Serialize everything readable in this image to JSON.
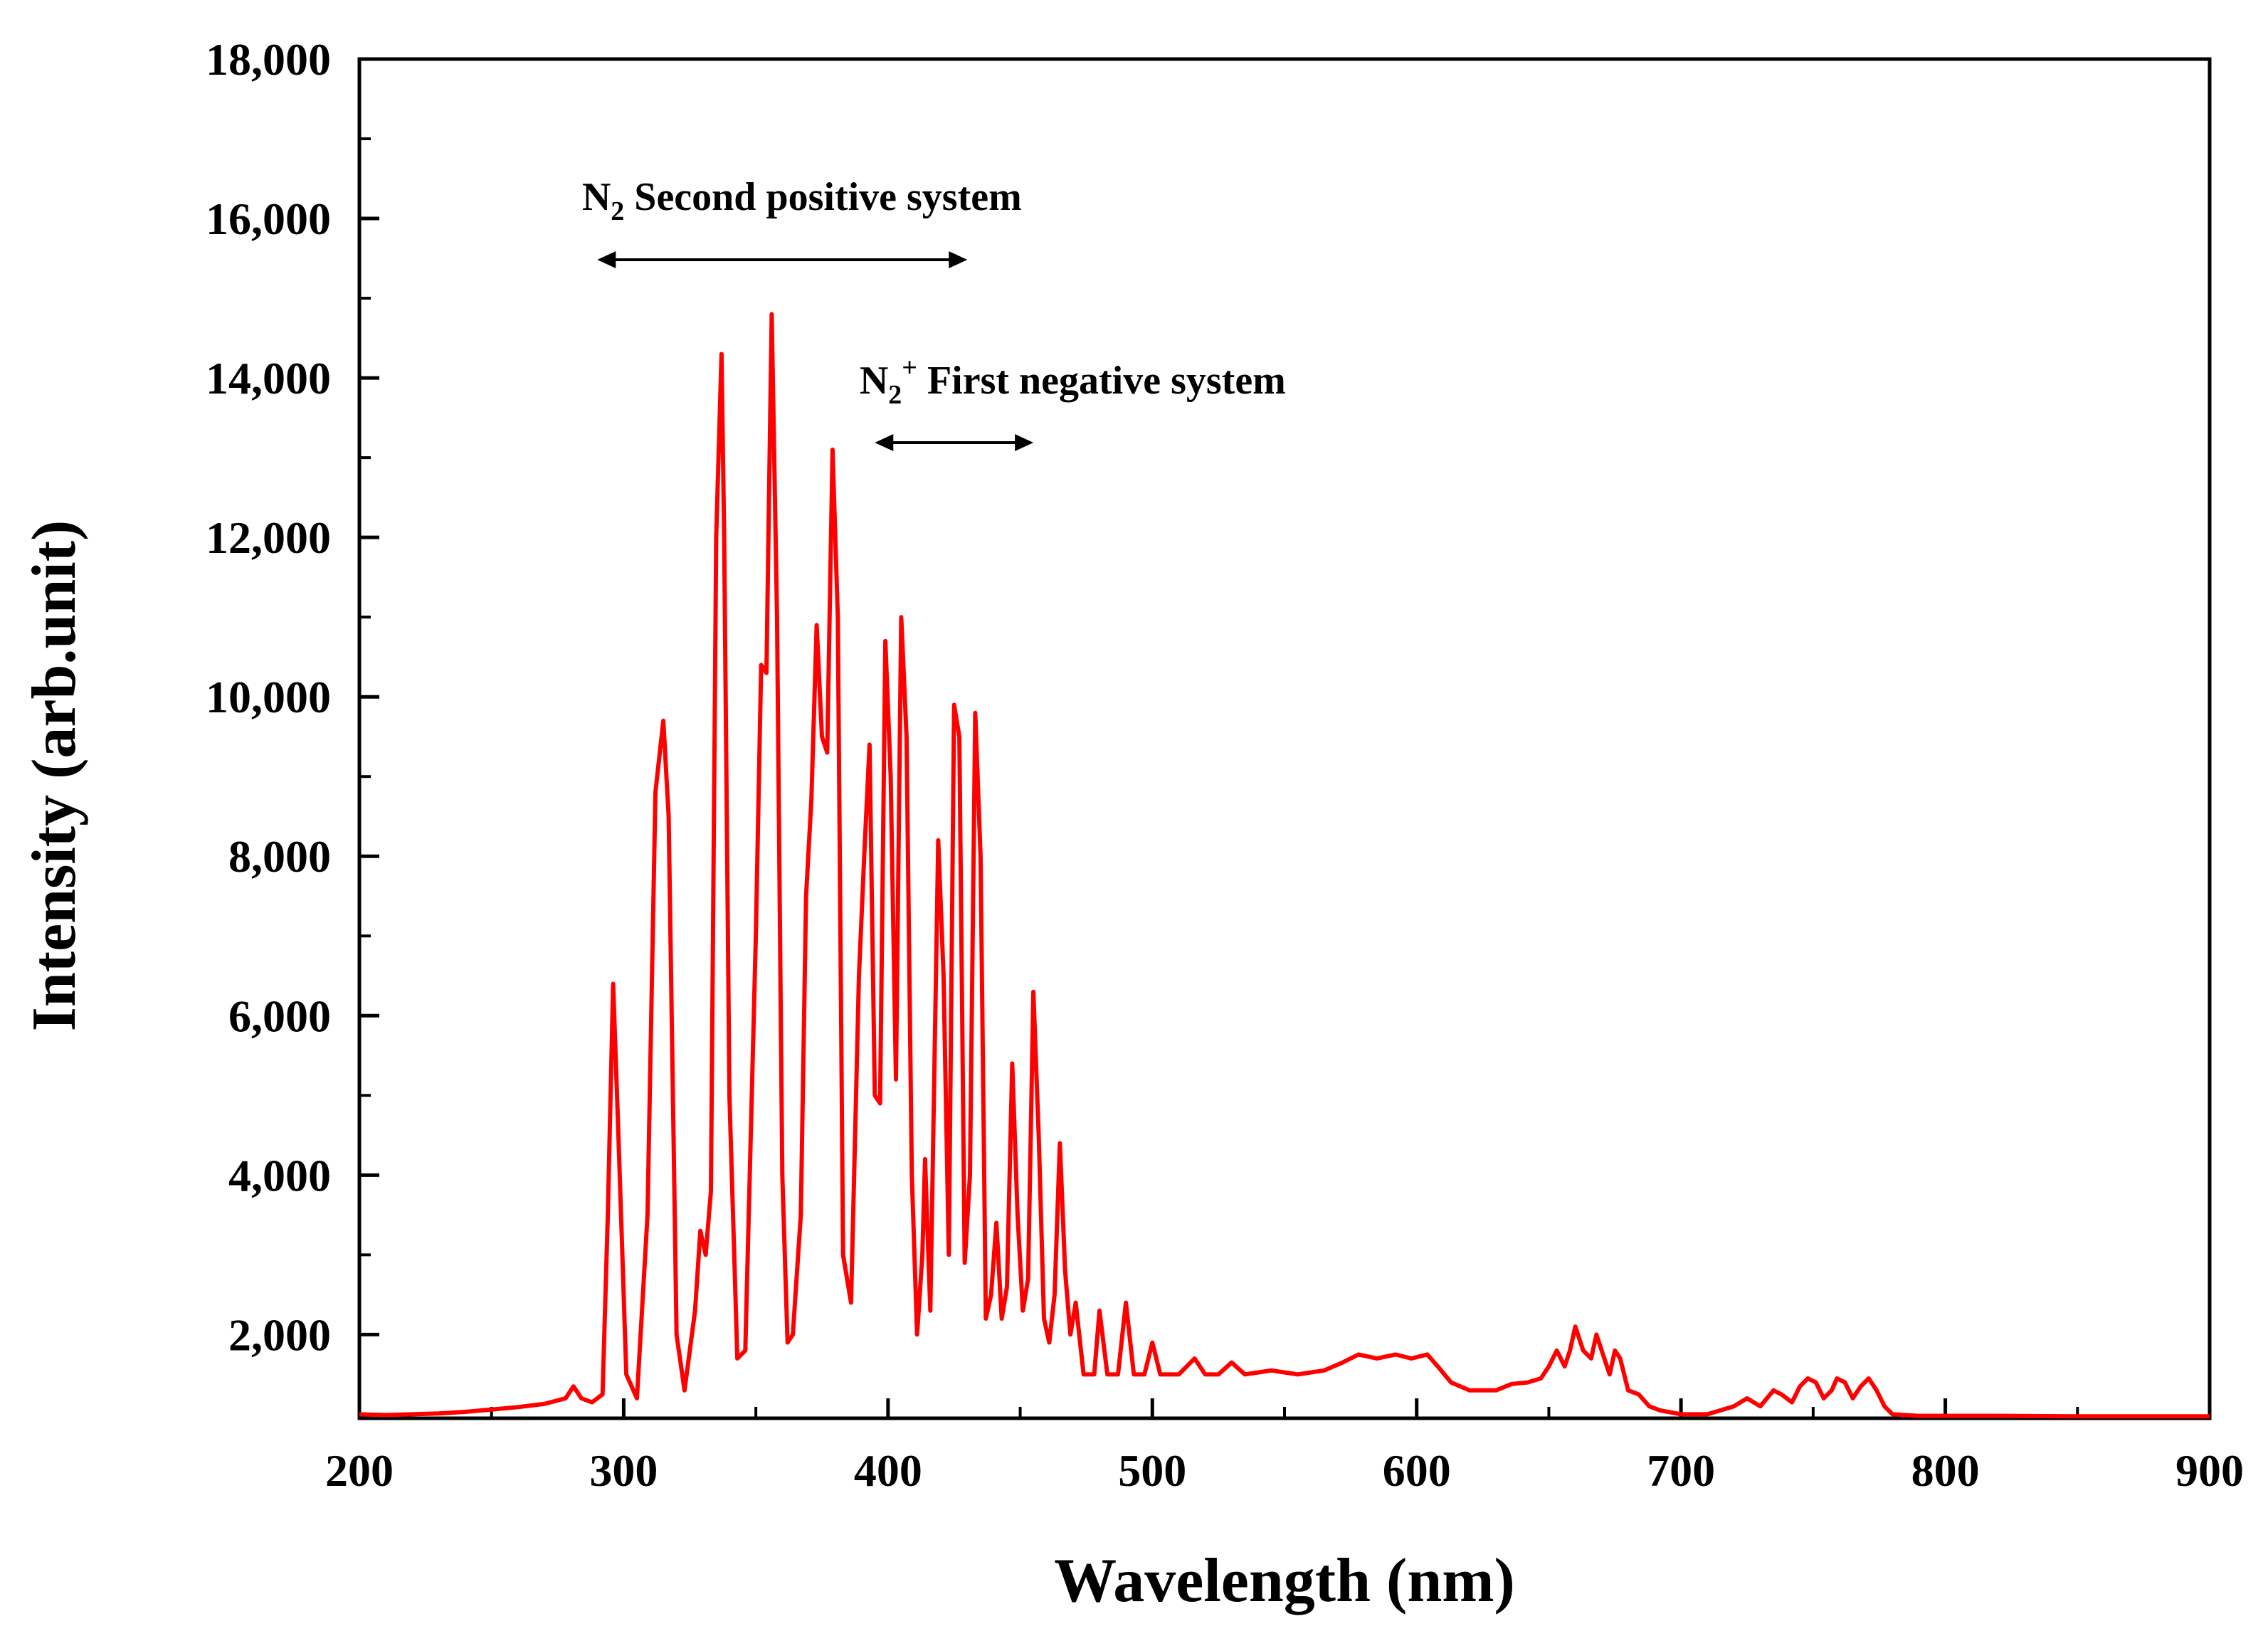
{
  "chart_data": {
    "type": "line",
    "xlabel": "Wavelength (nm)",
    "ylabel": "Intensity (arb.unit)",
    "xlim": [
      200,
      900
    ],
    "ylim": [
      950,
      18000
    ],
    "x_ticks": [
      200,
      300,
      400,
      500,
      600,
      700,
      800,
      900
    ],
    "x_tick_labels": [
      "200",
      "300",
      "400",
      "500",
      "600",
      "700",
      "800",
      "900"
    ],
    "y_ticks": [
      2000,
      4000,
      6000,
      8000,
      10000,
      12000,
      14000,
      16000,
      18000
    ],
    "y_tick_labels": [
      "2,000",
      "4,000",
      "6,000",
      "8,000",
      "10,000",
      "12,000",
      "14,000",
      "16,000",
      "18,000"
    ],
    "grid": false,
    "line_color": "#ff0000",
    "annotations": [
      {
        "base": "N",
        "sub": "2",
        "sup": "",
        "rest": " Second positive system",
        "x_start": 290,
        "x_end": 430,
        "anchor_x": 295
      },
      {
        "base": "N",
        "sub": "2",
        "sup": "+",
        "rest": " First negative system",
        "x_start": 395,
        "x_end": 455,
        "anchor_x": 400
      }
    ],
    "series": [
      {
        "values": [
          [
            200,
            1000
          ],
          [
            210,
            990
          ],
          [
            220,
            1000
          ],
          [
            230,
            1010
          ],
          [
            240,
            1030
          ],
          [
            250,
            1060
          ],
          [
            260,
            1090
          ],
          [
            270,
            1130
          ],
          [
            278,
            1200
          ],
          [
            281,
            1350
          ],
          [
            284,
            1200
          ],
          [
            288,
            1150
          ],
          [
            292,
            1250
          ],
          [
            294,
            3500
          ],
          [
            296,
            6400
          ],
          [
            298,
            4500
          ],
          [
            301,
            1500
          ],
          [
            305,
            1200
          ],
          [
            309,
            3500
          ],
          [
            312,
            8800
          ],
          [
            315,
            9700
          ],
          [
            317,
            8500
          ],
          [
            320,
            2000
          ],
          [
            323,
            1300
          ],
          [
            327,
            2300
          ],
          [
            329,
            3300
          ],
          [
            331,
            3000
          ],
          [
            333,
            3800
          ],
          [
            335,
            12000
          ],
          [
            337,
            14300
          ],
          [
            338,
            12000
          ],
          [
            340,
            5000
          ],
          [
            343,
            1700
          ],
          [
            346,
            1800
          ],
          [
            350,
            7000
          ],
          [
            352,
            10400
          ],
          [
            354,
            10300
          ],
          [
            356,
            14800
          ],
          [
            358,
            11000
          ],
          [
            360,
            4000
          ],
          [
            362,
            1900
          ],
          [
            364,
            2000
          ],
          [
            367,
            3500
          ],
          [
            369,
            7500
          ],
          [
            371,
            8700
          ],
          [
            373,
            10900
          ],
          [
            375,
            9500
          ],
          [
            377,
            9300
          ],
          [
            379,
            13100
          ],
          [
            381,
            11000
          ],
          [
            383,
            3000
          ],
          [
            386,
            2400
          ],
          [
            389,
            6500
          ],
          [
            391,
            8000
          ],
          [
            393,
            9400
          ],
          [
            395,
            5000
          ],
          [
            397,
            4900
          ],
          [
            399,
            10700
          ],
          [
            401,
            9000
          ],
          [
            403,
            5200
          ],
          [
            405,
            11000
          ],
          [
            407,
            9500
          ],
          [
            409,
            4000
          ],
          [
            411,
            2000
          ],
          [
            413,
            3000
          ],
          [
            414,
            4200
          ],
          [
            416,
            2300
          ],
          [
            419,
            8200
          ],
          [
            421,
            6500
          ],
          [
            423,
            3000
          ],
          [
            425,
            9900
          ],
          [
            427,
            9500
          ],
          [
            429,
            2900
          ],
          [
            431,
            4000
          ],
          [
            433,
            9800
          ],
          [
            435,
            8000
          ],
          [
            437,
            2200
          ],
          [
            439,
            2500
          ],
          [
            441,
            3400
          ],
          [
            443,
            2200
          ],
          [
            445,
            2600
          ],
          [
            447,
            5400
          ],
          [
            449,
            3500
          ],
          [
            451,
            2300
          ],
          [
            453,
            2700
          ],
          [
            455,
            6300
          ],
          [
            457,
            4500
          ],
          [
            459,
            2200
          ],
          [
            461,
            1900
          ],
          [
            463,
            2500
          ],
          [
            465,
            4400
          ],
          [
            467,
            2800
          ],
          [
            469,
            2000
          ],
          [
            471,
            2400
          ],
          [
            474,
            1500
          ],
          [
            478,
            1500
          ],
          [
            480,
            2300
          ],
          [
            483,
            1500
          ],
          [
            487,
            1500
          ],
          [
            490,
            2400
          ],
          [
            493,
            1500
          ],
          [
            497,
            1500
          ],
          [
            500,
            1900
          ],
          [
            503,
            1500
          ],
          [
            510,
            1500
          ],
          [
            516,
            1700
          ],
          [
            520,
            1500
          ],
          [
            525,
            1500
          ],
          [
            530,
            1650
          ],
          [
            535,
            1500
          ],
          [
            545,
            1550
          ],
          [
            555,
            1500
          ],
          [
            565,
            1550
          ],
          [
            572,
            1650
          ],
          [
            578,
            1750
          ],
          [
            585,
            1700
          ],
          [
            592,
            1750
          ],
          [
            598,
            1700
          ],
          [
            604,
            1750
          ],
          [
            608,
            1600
          ],
          [
            613,
            1400
          ],
          [
            620,
            1300
          ],
          [
            630,
            1300
          ],
          [
            636,
            1380
          ],
          [
            642,
            1400
          ],
          [
            647,
            1450
          ],
          [
            650,
            1600
          ],
          [
            653,
            1800
          ],
          [
            656,
            1600
          ],
          [
            658,
            1800
          ],
          [
            660,
            2100
          ],
          [
            663,
            1800
          ],
          [
            666,
            1700
          ],
          [
            668,
            2000
          ],
          [
            671,
            1700
          ],
          [
            673,
            1500
          ],
          [
            675,
            1800
          ],
          [
            677,
            1700
          ],
          [
            680,
            1300
          ],
          [
            684,
            1250
          ],
          [
            688,
            1100
          ],
          [
            692,
            1050
          ],
          [
            700,
            1000
          ],
          [
            710,
            1000
          ],
          [
            715,
            1050
          ],
          [
            720,
            1100
          ],
          [
            725,
            1200
          ],
          [
            730,
            1100
          ],
          [
            735,
            1300
          ],
          [
            738,
            1250
          ],
          [
            742,
            1150
          ],
          [
            745,
            1350
          ],
          [
            748,
            1450
          ],
          [
            751,
            1400
          ],
          [
            754,
            1200
          ],
          [
            757,
            1300
          ],
          [
            759,
            1450
          ],
          [
            762,
            1400
          ],
          [
            765,
            1200
          ],
          [
            768,
            1350
          ],
          [
            771,
            1450
          ],
          [
            774,
            1300
          ],
          [
            777,
            1100
          ],
          [
            780,
            1000
          ],
          [
            790,
            980
          ],
          [
            800,
            980
          ],
          [
            820,
            980
          ],
          [
            850,
            975
          ],
          [
            880,
            975
          ],
          [
            900,
            975
          ]
        ]
      }
    ]
  }
}
